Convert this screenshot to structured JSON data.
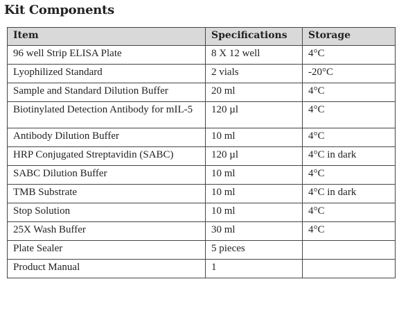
{
  "header": {
    "title": "Kit Components"
  },
  "table": {
    "columns": [
      "Item",
      "Specifications",
      "Storage"
    ],
    "rows": [
      [
        "96 well Strip ELISA Plate",
        "8 X 12 well",
        "4°C"
      ],
      [
        "Lyophilized Standard",
        "2 vials",
        "-20°C"
      ],
      [
        "Sample and Standard Dilution Buffer",
        "20 ml",
        "4°C"
      ],
      [
        "Biotinylated Detection Antibody for mIL-5",
        "120 µl",
        "4°C"
      ],
      [
        "Antibody Dilution Buffer",
        "10 ml",
        "4°C"
      ],
      [
        "HRP Conjugated Streptavidin (SABC)",
        "120 µl",
        "4°C in dark"
      ],
      [
        "SABC Dilution Buffer",
        "10 ml",
        "4°C"
      ],
      [
        "TMB Substrate",
        "10 ml",
        "4°C in dark"
      ],
      [
        "Stop Solution",
        "10 ml",
        "4°C"
      ],
      [
        "25X Wash Buffer",
        "30 ml",
        "4°C"
      ],
      [
        "Plate Sealer",
        "5 pieces",
        null
      ],
      [
        "Product Manual",
        "1",
        null
      ]
    ]
  }
}
